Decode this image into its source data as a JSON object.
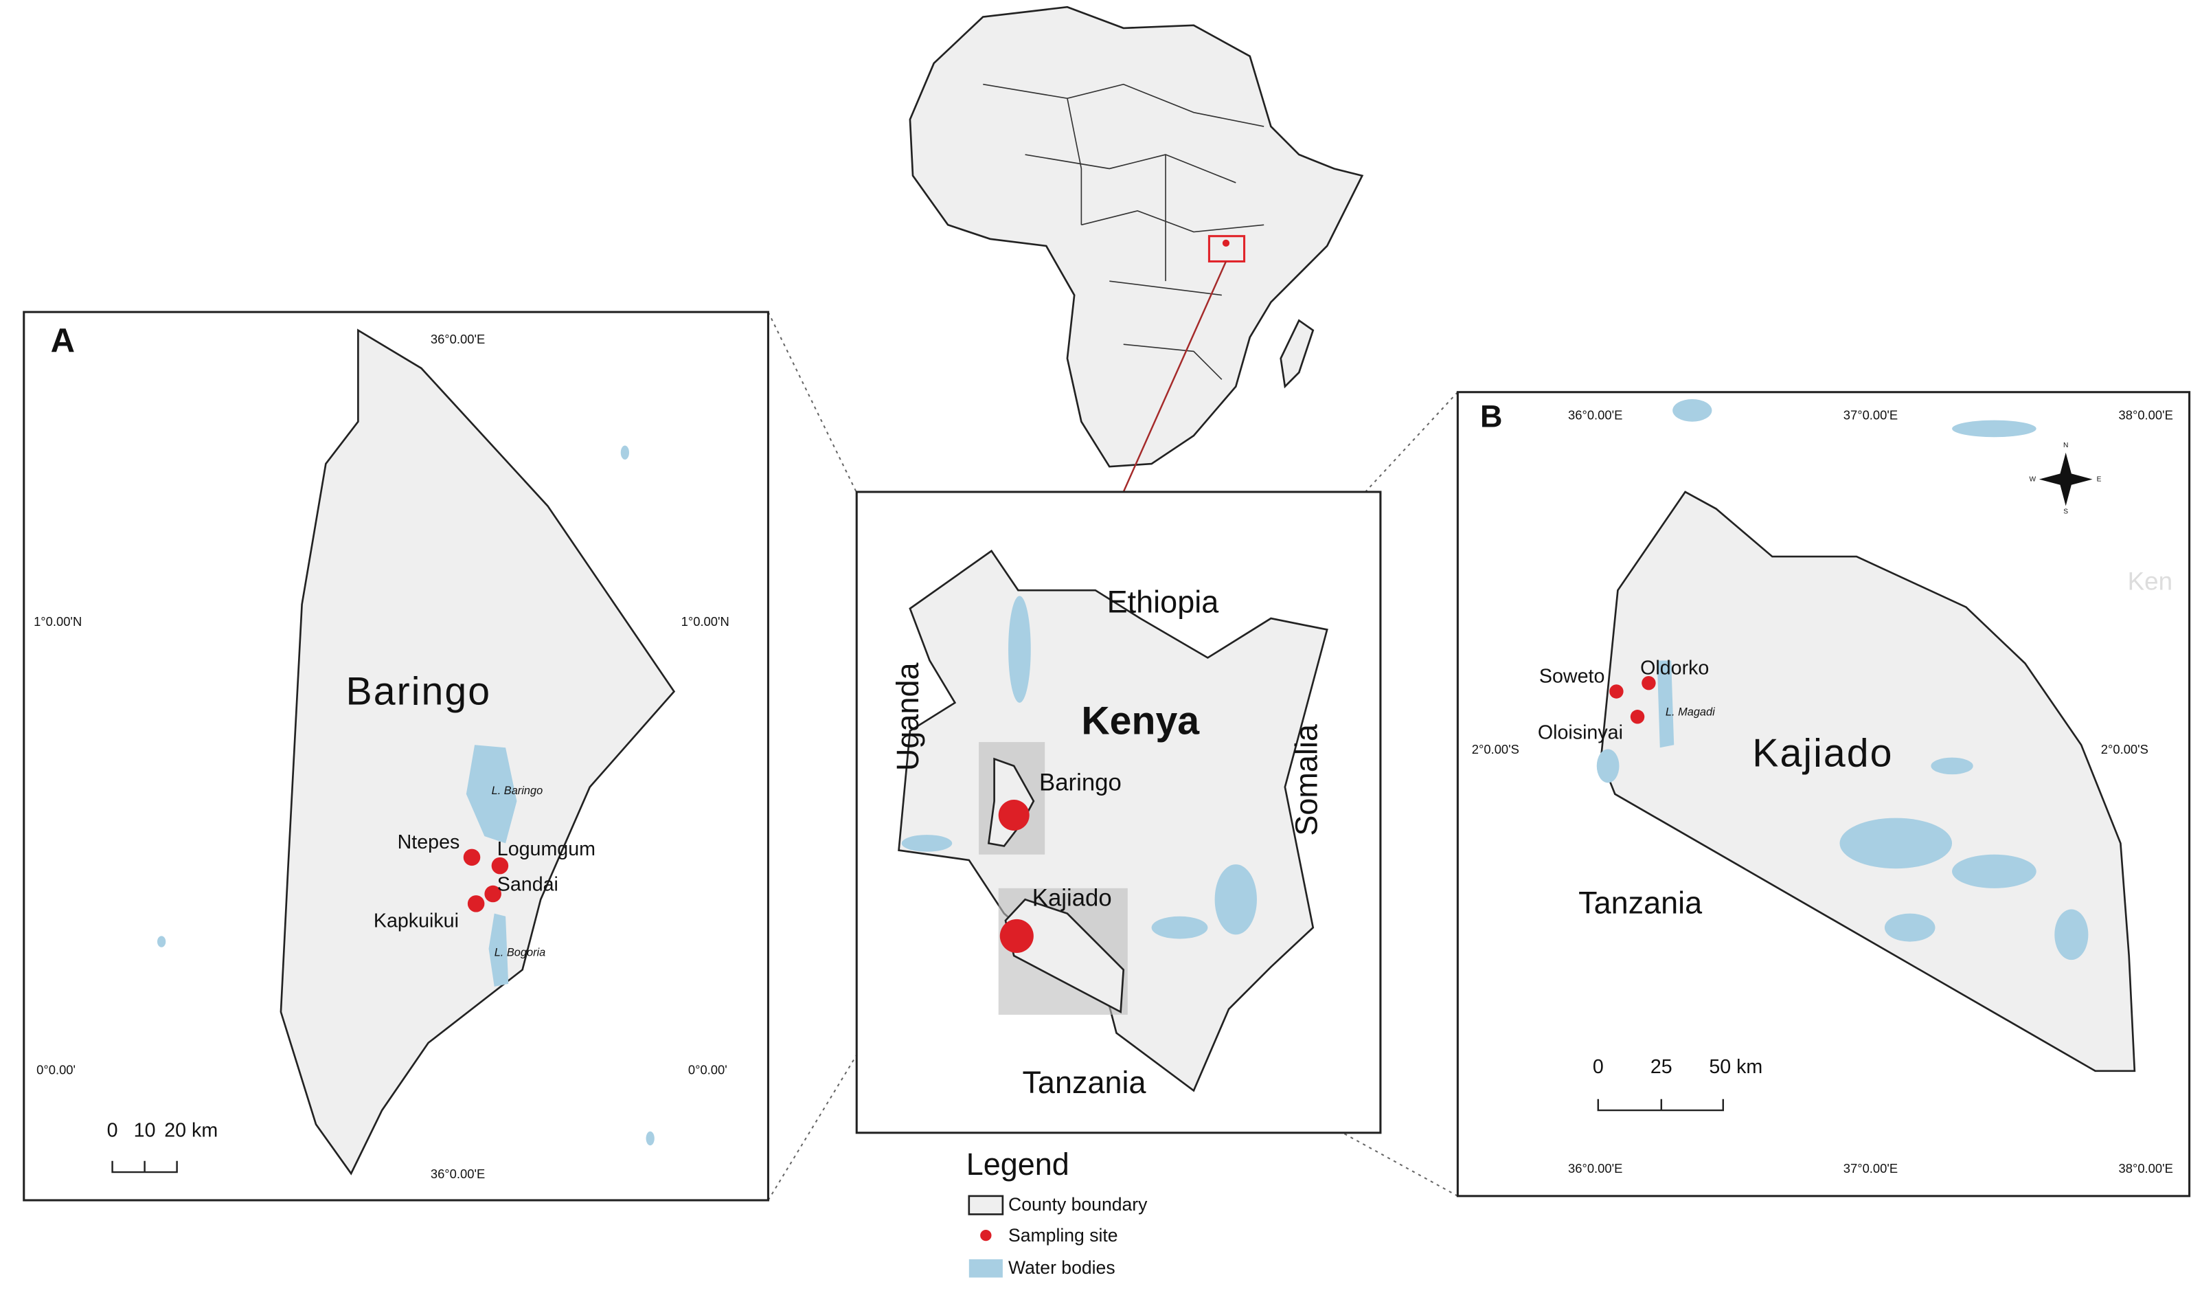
{
  "center_map": {
    "countries": [
      "Ethiopia",
      "Uganda",
      "Kenya",
      "Somalia",
      "Tanzania"
    ],
    "counties": [
      "Baringo",
      "Kajiado"
    ]
  },
  "legend": {
    "title": "Legend",
    "items": [
      "County boundary",
      "Sampling site",
      "Water bodies"
    ]
  },
  "panel_a": {
    "letter": "A",
    "county": "Baringo",
    "lakes": [
      "L. Baringo",
      "L. Bogoria"
    ],
    "sites": [
      "Ntepes",
      "Logumgum",
      "Sandai",
      "Kapkuikui"
    ],
    "graticule": {
      "longitude": "36°0.00'E",
      "latitudes": [
        "1°0.00'N",
        "0°0.00'"
      ]
    },
    "scale_bar": [
      "0",
      "10",
      "20 km"
    ]
  },
  "panel_b": {
    "letter": "B",
    "county": "Kajiado",
    "country": "Tanzania",
    "faint_label": "Ken",
    "lake": "L. Magadi",
    "sites": [
      "Soweto",
      "Oldorko",
      "Oloisinyai"
    ],
    "graticule": {
      "longitudes": [
        "36°0.00'E",
        "37°0.00'E",
        "38°0.00'E"
      ],
      "latitude": "2°0.00'S"
    },
    "scale_bar": [
      "0",
      "25",
      "50 km"
    ],
    "compass": [
      "N",
      "E",
      "S",
      "W"
    ]
  }
}
